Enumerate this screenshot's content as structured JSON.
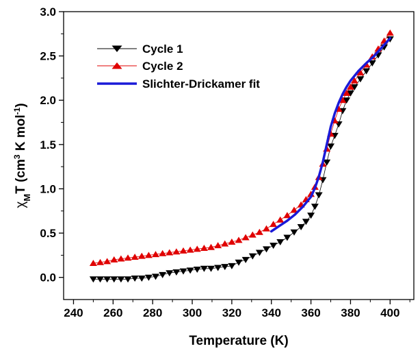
{
  "chart_data": {
    "type": "scatter",
    "xlabel": "Temperature (K)",
    "ylabel_parts": {
      "chi": "χ",
      "sub_m": "M",
      "mid": "T (cm",
      "sup3": "3",
      "mid2": " K mol",
      "sup_neg1": "-1",
      "end": ")"
    },
    "xlim": [
      235,
      412
    ],
    "ylim": [
      -0.25,
      3.0
    ],
    "xticks": [
      240,
      260,
      280,
      300,
      320,
      340,
      360,
      380,
      400
    ],
    "yticks": [
      0.0,
      0.5,
      1.0,
      1.5,
      2.0,
      2.5,
      3.0
    ],
    "ytick_labels": [
      "0.0",
      "0.5",
      "1.0",
      "1.5",
      "2.0",
      "2.5",
      "3.0"
    ],
    "legend_placement": "top-left",
    "series": [
      {
        "name": "Cycle 1",
        "color": "#000000",
        "marker": "triangle-down",
        "x": [
          250,
          253.5,
          257,
          260.5,
          264,
          267.5,
          271,
          274.5,
          278,
          281.5,
          285,
          288.5,
          292,
          295.5,
          299,
          302.5,
          306,
          309.5,
          313,
          316.5,
          320,
          323.5,
          327,
          330.5,
          334,
          337.5,
          341,
          344.5,
          348,
          351.5,
          355,
          357.5,
          360,
          362,
          364,
          366,
          368,
          370,
          372,
          374,
          376,
          378,
          380,
          382,
          385,
          388,
          391,
          394,
          397,
          400
        ],
        "y": [
          -0.02,
          -0.02,
          -0.02,
          -0.02,
          -0.02,
          -0.02,
          -0.01,
          -0.01,
          0.0,
          0.01,
          0.03,
          0.05,
          0.06,
          0.07,
          0.08,
          0.09,
          0.1,
          0.1,
          0.11,
          0.12,
          0.13,
          0.17,
          0.2,
          0.24,
          0.28,
          0.32,
          0.36,
          0.4,
          0.45,
          0.51,
          0.57,
          0.63,
          0.7,
          0.8,
          0.93,
          1.1,
          1.3,
          1.48,
          1.6,
          1.73,
          1.88,
          2.0,
          2.08,
          2.15,
          2.24,
          2.33,
          2.42,
          2.51,
          2.6,
          2.69
        ]
      },
      {
        "name": "Cycle 2",
        "color": "#e00000",
        "marker": "triangle-up",
        "x": [
          250,
          253.5,
          257,
          260.5,
          264,
          267.5,
          271,
          274.5,
          278,
          281.5,
          285,
          288.5,
          292,
          295.5,
          299,
          302.5,
          306,
          309.5,
          313,
          316.5,
          320,
          323.5,
          327,
          330.5,
          334,
          337.5,
          341,
          344.5,
          348,
          351.5,
          355,
          357.5,
          360,
          362,
          364,
          366,
          368,
          370,
          372,
          374,
          376,
          378,
          380,
          382,
          385,
          388,
          391,
          394,
          397,
          400
        ],
        "y": [
          0.16,
          0.17,
          0.18,
          0.2,
          0.21,
          0.22,
          0.23,
          0.24,
          0.25,
          0.26,
          0.27,
          0.28,
          0.29,
          0.3,
          0.31,
          0.32,
          0.33,
          0.34,
          0.36,
          0.38,
          0.4,
          0.42,
          0.45,
          0.48,
          0.51,
          0.55,
          0.6,
          0.65,
          0.7,
          0.76,
          0.82,
          0.88,
          0.94,
          1.02,
          1.13,
          1.28,
          1.45,
          1.62,
          1.77,
          1.9,
          2.0,
          2.08,
          2.15,
          2.22,
          2.31,
          2.4,
          2.49,
          2.58,
          2.67,
          2.76
        ]
      },
      {
        "name": "Slichter-Drickamer fit",
        "color": "#1a1ad8",
        "line_only": true,
        "x": [
          340,
          344,
          348,
          352,
          356,
          360,
          362,
          364,
          366,
          368,
          370,
          372,
          374,
          376,
          378,
          380,
          384,
          388,
          392,
          396,
          400
        ],
        "y": [
          0.52,
          0.58,
          0.64,
          0.71,
          0.8,
          0.91,
          1.01,
          1.14,
          1.3,
          1.5,
          1.7,
          1.85,
          1.97,
          2.07,
          2.15,
          2.22,
          2.33,
          2.42,
          2.5,
          2.6,
          2.7
        ]
      }
    ]
  }
}
